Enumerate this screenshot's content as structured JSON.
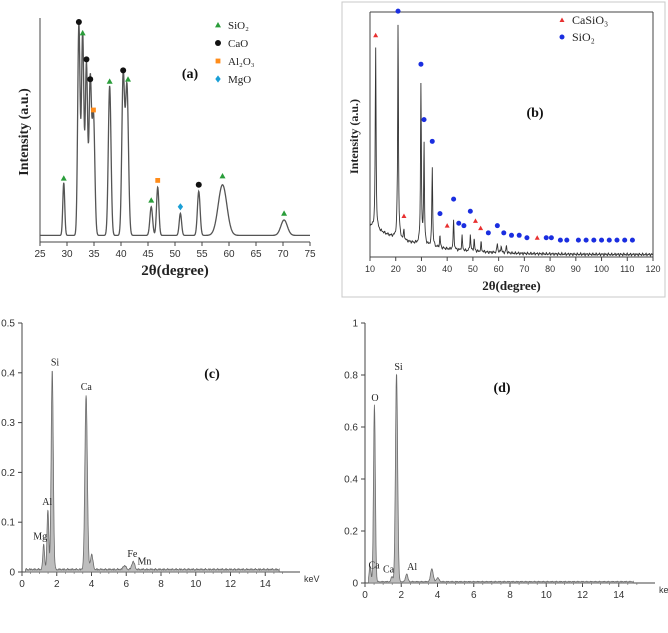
{
  "chart_data": [
    {
      "panel": "(a)",
      "type": "line",
      "title": "",
      "xlabel": "2θ(degree)",
      "ylabel": "Intensity (a.u.)",
      "xlim": [
        25,
        75
      ],
      "xticks": [
        25,
        30,
        35,
        40,
        45,
        50,
        55,
        60,
        65,
        70,
        75
      ],
      "yticks": [],
      "grid": false,
      "legend": {
        "position": "top-right",
        "entries": [
          {
            "label": "SiO₂",
            "symbol": "triangle",
            "color": "#2a9d3a"
          },
          {
            "label": "CaO",
            "symbol": "circle",
            "color": "#111111"
          },
          {
            "label": "Al₂O₃",
            "symbol": "square",
            "color": "#ff8c1a"
          },
          {
            "label": "MgO",
            "symbol": "diamond",
            "color": "#1a9fd6"
          }
        ]
      },
      "baseline": 0.03,
      "peaks": [
        {
          "x": 29.4,
          "h": 0.24,
          "w": 0.18
        },
        {
          "x": 32.2,
          "h": 0.96,
          "w": 0.22
        },
        {
          "x": 32.9,
          "h": 0.92,
          "w": 0.22
        },
        {
          "x": 33.6,
          "h": 0.78,
          "w": 0.22
        },
        {
          "x": 34.3,
          "h": 0.7,
          "w": 0.22
        },
        {
          "x": 34.9,
          "h": 0.55,
          "w": 0.25
        },
        {
          "x": 37.9,
          "h": 0.68,
          "w": 0.25
        },
        {
          "x": 40.4,
          "h": 0.72,
          "w": 0.25
        },
        {
          "x": 41.1,
          "h": 0.68,
          "w": 0.28
        },
        {
          "x": 45.6,
          "h": 0.13,
          "w": 0.25
        },
        {
          "x": 46.8,
          "h": 0.22,
          "w": 0.22
        },
        {
          "x": 51.0,
          "h": 0.1,
          "w": 0.22
        },
        {
          "x": 54.4,
          "h": 0.2,
          "w": 0.25
        },
        {
          "x": 58.8,
          "h": 0.23,
          "w": 0.8
        },
        {
          "x": 70.2,
          "h": 0.07,
          "w": 0.6
        }
      ],
      "markers": [
        {
          "x": 29.4,
          "y": 0.29,
          "phase": "SiO₂"
        },
        {
          "x": 32.2,
          "y": 1.0,
          "phase": "CaO"
        },
        {
          "x": 32.9,
          "y": 0.95,
          "phase": "SiO₂"
        },
        {
          "x": 33.6,
          "y": 0.83,
          "phase": "CaO"
        },
        {
          "x": 34.3,
          "y": 0.74,
          "phase": "CaO"
        },
        {
          "x": 34.9,
          "y": 0.6,
          "phase": "Al₂O₃"
        },
        {
          "x": 37.9,
          "y": 0.73,
          "phase": "SiO₂"
        },
        {
          "x": 40.4,
          "y": 0.78,
          "phase": "CaO"
        },
        {
          "x": 41.3,
          "y": 0.74,
          "phase": "SiO₂"
        },
        {
          "x": 45.6,
          "y": 0.19,
          "phase": "SiO₂"
        },
        {
          "x": 46.8,
          "y": 0.28,
          "phase": "Al₂O₃"
        },
        {
          "x": 51.0,
          "y": 0.16,
          "phase": "MgO"
        },
        {
          "x": 54.4,
          "y": 0.26,
          "phase": "CaO"
        },
        {
          "x": 58.8,
          "y": 0.3,
          "phase": "SiO₂"
        },
        {
          "x": 70.2,
          "y": 0.13,
          "phase": "SiO₂"
        }
      ]
    },
    {
      "panel": "(b)",
      "type": "line",
      "title": "",
      "xlabel": "2θ(degree)",
      "ylabel": "Intensity (a.u.)",
      "xlim": [
        10,
        120
      ],
      "xticks": [
        10,
        20,
        30,
        40,
        50,
        60,
        70,
        80,
        90,
        100,
        110,
        120
      ],
      "grid": false,
      "legend": {
        "position": "top-right",
        "entries": [
          {
            "label": "CaSiO₃",
            "symbol": "triangle",
            "color": "#e83030"
          },
          {
            "label": "SiO₂",
            "symbol": "circle",
            "color": "#1a2ee0"
          }
        ]
      },
      "background": {
        "start": 0.13,
        "end": 0.01
      },
      "peaks": [
        {
          "x": 12.2,
          "h": 0.75
        },
        {
          "x": 20.9,
          "h": 0.9
        },
        {
          "x": 23.2,
          "h": 0.04
        },
        {
          "x": 29.8,
          "h": 0.66
        },
        {
          "x": 31.0,
          "h": 0.42
        },
        {
          "x": 34.2,
          "h": 0.33
        },
        {
          "x": 37.2,
          "h": 0.05
        },
        {
          "x": 42.5,
          "h": 0.12
        },
        {
          "x": 45.8,
          "h": 0.06
        },
        {
          "x": 49.0,
          "h": 0.07
        },
        {
          "x": 50.5,
          "h": 0.05
        },
        {
          "x": 53.2,
          "h": 0.04
        },
        {
          "x": 59.5,
          "h": 0.04
        },
        {
          "x": 61.0,
          "h": 0.03
        },
        {
          "x": 63.0,
          "h": 0.03
        }
      ],
      "markers": [
        {
          "x": 12.2,
          "y": 0.92,
          "phase": "CaSiO₃"
        },
        {
          "x": 20.9,
          "y": 1.02,
          "phase": "SiO₂"
        },
        {
          "x": 23.2,
          "y": 0.17,
          "phase": "CaSiO₃"
        },
        {
          "x": 29.8,
          "y": 0.8,
          "phase": "SiO₂"
        },
        {
          "x": 31.0,
          "y": 0.57,
          "phase": "SiO₂"
        },
        {
          "x": 34.2,
          "y": 0.48,
          "phase": "SiO₂"
        },
        {
          "x": 37.2,
          "y": 0.18,
          "phase": "SiO₂"
        },
        {
          "x": 40.0,
          "y": 0.13,
          "phase": "CaSiO₃"
        },
        {
          "x": 42.5,
          "y": 0.24,
          "phase": "SiO₂"
        },
        {
          "x": 44.5,
          "y": 0.14,
          "phase": "SiO₂"
        },
        {
          "x": 46.5,
          "y": 0.13,
          "phase": "SiO₂"
        },
        {
          "x": 49.0,
          "y": 0.19,
          "phase": "SiO₂"
        },
        {
          "x": 51.0,
          "y": 0.15,
          "phase": "CaSiO₃"
        },
        {
          "x": 53.0,
          "y": 0.12,
          "phase": "CaSiO₃"
        },
        {
          "x": 56.0,
          "y": 0.1,
          "phase": "SiO₂"
        },
        {
          "x": 59.5,
          "y": 0.13,
          "phase": "SiO₂"
        },
        {
          "x": 62.0,
          "y": 0.1,
          "phase": "SiO₂"
        },
        {
          "x": 65.0,
          "y": 0.09,
          "phase": "SiO₂"
        },
        {
          "x": 68.0,
          "y": 0.09,
          "phase": "SiO₂"
        },
        {
          "x": 71.0,
          "y": 0.08,
          "phase": "SiO₂"
        },
        {
          "x": 75.0,
          "y": 0.08,
          "phase": "CaSiO₃"
        },
        {
          "x": 78.5,
          "y": 0.08,
          "phase": "SiO₂"
        },
        {
          "x": 80.5,
          "y": 0.08,
          "phase": "SiO₂"
        },
        {
          "x": 84.0,
          "y": 0.07,
          "phase": "SiO₂"
        },
        {
          "x": 86.5,
          "y": 0.07,
          "phase": "SiO₂"
        },
        {
          "x": 91.0,
          "y": 0.07,
          "phase": "SiO₂"
        },
        {
          "x": 94.0,
          "y": 0.07,
          "phase": "SiO₂"
        },
        {
          "x": 97.0,
          "y": 0.07,
          "phase": "SiO₂"
        },
        {
          "x": 100.0,
          "y": 0.07,
          "phase": "SiO₂"
        },
        {
          "x": 103.0,
          "y": 0.07,
          "phase": "SiO₂"
        },
        {
          "x": 106.0,
          "y": 0.07,
          "phase": "SiO₂"
        },
        {
          "x": 109.0,
          "y": 0.07,
          "phase": "SiO₂"
        },
        {
          "x": 112.0,
          "y": 0.07,
          "phase": "SiO₂"
        }
      ]
    },
    {
      "panel": "(c)",
      "type": "area",
      "xlabel": "keV",
      "ylabel": "",
      "xlim": [
        0,
        16
      ],
      "ylim": [
        0,
        0.5
      ],
      "xticks": [
        0,
        2,
        4,
        6,
        8,
        10,
        12,
        14
      ],
      "yticks": [
        0,
        0.1,
        0.2,
        0.3,
        0.4,
        0.5
      ],
      "peaks": [
        {
          "x": 1.25,
          "h": 0.05,
          "w": 0.05
        },
        {
          "x": 1.49,
          "h": 0.12,
          "w": 0.05
        },
        {
          "x": 1.74,
          "h": 0.4,
          "w": 0.06
        },
        {
          "x": 3.69,
          "h": 0.35,
          "w": 0.07
        },
        {
          "x": 4.01,
          "h": 0.03,
          "w": 0.07
        },
        {
          "x": 6.4,
          "h": 0.016,
          "w": 0.08
        },
        {
          "x": 5.9,
          "h": 0.008,
          "w": 0.08
        }
      ],
      "element_labels": [
        {
          "label": "Mg",
          "x": 1.05,
          "y": 0.065
        },
        {
          "label": "Al",
          "x": 1.45,
          "y": 0.135
        },
        {
          "label": "Si",
          "x": 1.9,
          "y": 0.415
        },
        {
          "label": "Ca",
          "x": 3.7,
          "y": 0.365
        },
        {
          "label": "Fe",
          "x": 6.35,
          "y": 0.03
        },
        {
          "label": "Mn",
          "x": 7.05,
          "y": 0.015
        }
      ]
    },
    {
      "panel": "(d)",
      "type": "area",
      "xlabel": "keV",
      "ylabel": "",
      "xlim": [
        0,
        16
      ],
      "ylim": [
        0,
        1
      ],
      "xticks": [
        0,
        2,
        4,
        6,
        8,
        10,
        12,
        14
      ],
      "yticks": [
        0,
        0.2,
        0.4,
        0.6,
        0.8,
        1
      ],
      "peaks": [
        {
          "x": 0.28,
          "h": 0.06,
          "w": 0.05
        },
        {
          "x": 0.52,
          "h": 0.68,
          "w": 0.05
        },
        {
          "x": 1.74,
          "h": 0.8,
          "w": 0.06
        },
        {
          "x": 3.69,
          "h": 0.05,
          "w": 0.07
        },
        {
          "x": 1.49,
          "h": 0.02,
          "w": 0.05
        },
        {
          "x": 2.3,
          "h": 0.03,
          "w": 0.06
        },
        {
          "x": 4.01,
          "h": 0.015,
          "w": 0.07
        }
      ],
      "element_labels": [
        {
          "label": "Ca",
          "x": 0.5,
          "y": 0.055
        },
        {
          "label": "O",
          "x": 0.55,
          "y": 0.7
        },
        {
          "label": "Si",
          "x": 1.85,
          "y": 0.82
        },
        {
          "label": "Ca",
          "x": 1.3,
          "y": 0.04
        },
        {
          "label": "Al",
          "x": 2.6,
          "y": 0.05
        }
      ]
    }
  ]
}
